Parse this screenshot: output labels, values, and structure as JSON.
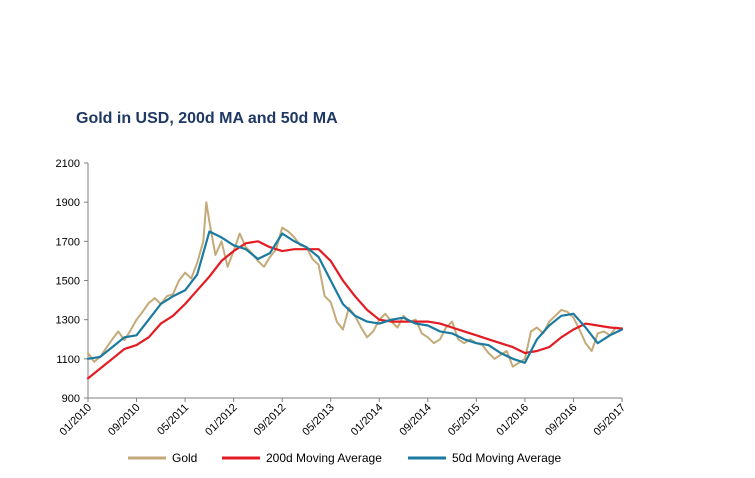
{
  "chart_data": {
    "type": "line",
    "title": "Gold in USD, 200d MA and 50d MA",
    "xlabel": "",
    "ylabel": "",
    "ylim": [
      900,
      2100
    ],
    "yticks": [
      900,
      1100,
      1300,
      1500,
      1700,
      1900,
      2100
    ],
    "x_range": [
      0,
      88
    ],
    "x_unit": "months since 01/2010",
    "xticks": [
      {
        "label": "01/2010",
        "x": 0
      },
      {
        "label": "09/2010",
        "x": 8
      },
      {
        "label": "05/2011",
        "x": 16
      },
      {
        "label": "01/2012",
        "x": 24
      },
      {
        "label": "09/2012",
        "x": 32
      },
      {
        "label": "05/2013",
        "x": 40
      },
      {
        "label": "01/2014",
        "x": 48
      },
      {
        "label": "09/2014",
        "x": 56
      },
      {
        "label": "05/2015",
        "x": 64
      },
      {
        "label": "01/2016",
        "x": 72
      },
      {
        "label": "09/2016",
        "x": 80
      },
      {
        "label": "05/2017",
        "x": 88
      }
    ],
    "legend_position": "bottom",
    "series": [
      {
        "name": "Gold",
        "color": "#c4aa78",
        "points": [
          [
            0,
            1130
          ],
          [
            1,
            1085
          ],
          [
            2,
            1110
          ],
          [
            3,
            1155
          ],
          [
            4,
            1200
          ],
          [
            5,
            1240
          ],
          [
            6,
            1195
          ],
          [
            7,
            1245
          ],
          [
            8,
            1300
          ],
          [
            9,
            1340
          ],
          [
            10,
            1385
          ],
          [
            11,
            1410
          ],
          [
            12,
            1380
          ],
          [
            13,
            1420
          ],
          [
            14,
            1430
          ],
          [
            15,
            1500
          ],
          [
            16,
            1540
          ],
          [
            17,
            1510
          ],
          [
            18,
            1590
          ],
          [
            19,
            1700
          ],
          [
            19.5,
            1900
          ],
          [
            20,
            1800
          ],
          [
            21,
            1630
          ],
          [
            22,
            1700
          ],
          [
            23,
            1570
          ],
          [
            24,
            1650
          ],
          [
            25,
            1740
          ],
          [
            26,
            1670
          ],
          [
            27,
            1640
          ],
          [
            28,
            1600
          ],
          [
            29,
            1570
          ],
          [
            30,
            1620
          ],
          [
            31,
            1660
          ],
          [
            32,
            1770
          ],
          [
            33,
            1750
          ],
          [
            34,
            1720
          ],
          [
            35,
            1680
          ],
          [
            36,
            1670
          ],
          [
            37,
            1610
          ],
          [
            38,
            1580
          ],
          [
            39,
            1420
          ],
          [
            40,
            1390
          ],
          [
            41,
            1290
          ],
          [
            42,
            1250
          ],
          [
            43,
            1360
          ],
          [
            44,
            1320
          ],
          [
            45,
            1260
          ],
          [
            46,
            1210
          ],
          [
            47,
            1240
          ],
          [
            48,
            1300
          ],
          [
            49,
            1330
          ],
          [
            50,
            1290
          ],
          [
            51,
            1260
          ],
          [
            52,
            1320
          ],
          [
            53,
            1290
          ],
          [
            54,
            1300
          ],
          [
            55,
            1230
          ],
          [
            56,
            1210
          ],
          [
            57,
            1180
          ],
          [
            58,
            1200
          ],
          [
            59,
            1260
          ],
          [
            60,
            1290
          ],
          [
            61,
            1200
          ],
          [
            62,
            1180
          ],
          [
            63,
            1200
          ],
          [
            64,
            1180
          ],
          [
            65,
            1170
          ],
          [
            66,
            1130
          ],
          [
            67,
            1100
          ],
          [
            68,
            1120
          ],
          [
            69,
            1140
          ],
          [
            70,
            1060
          ],
          [
            71,
            1080
          ],
          [
            72,
            1100
          ],
          [
            73,
            1240
          ],
          [
            74,
            1260
          ],
          [
            75,
            1230
          ],
          [
            76,
            1290
          ],
          [
            77,
            1320
          ],
          [
            78,
            1350
          ],
          [
            79,
            1340
          ],
          [
            80,
            1310
          ],
          [
            81,
            1250
          ],
          [
            82,
            1180
          ],
          [
            83,
            1140
          ],
          [
            84,
            1230
          ],
          [
            85,
            1240
          ],
          [
            86,
            1220
          ],
          [
            87,
            1260
          ],
          [
            88,
            1250
          ]
        ]
      },
      {
        "name": "200d Moving Average",
        "color": "#e31b23",
        "points": [
          [
            0,
            1000
          ],
          [
            2,
            1050
          ],
          [
            4,
            1100
          ],
          [
            6,
            1150
          ],
          [
            8,
            1170
          ],
          [
            10,
            1210
          ],
          [
            12,
            1280
          ],
          [
            14,
            1320
          ],
          [
            16,
            1380
          ],
          [
            18,
            1450
          ],
          [
            20,
            1520
          ],
          [
            22,
            1600
          ],
          [
            24,
            1650
          ],
          [
            26,
            1690
          ],
          [
            28,
            1700
          ],
          [
            30,
            1670
          ],
          [
            32,
            1650
          ],
          [
            34,
            1660
          ],
          [
            36,
            1660
          ],
          [
            38,
            1660
          ],
          [
            40,
            1600
          ],
          [
            42,
            1500
          ],
          [
            44,
            1420
          ],
          [
            46,
            1350
          ],
          [
            48,
            1300
          ],
          [
            50,
            1290
          ],
          [
            52,
            1290
          ],
          [
            54,
            1290
          ],
          [
            56,
            1290
          ],
          [
            58,
            1280
          ],
          [
            60,
            1260
          ],
          [
            62,
            1240
          ],
          [
            64,
            1220
          ],
          [
            66,
            1200
          ],
          [
            68,
            1180
          ],
          [
            70,
            1160
          ],
          [
            72,
            1130
          ],
          [
            74,
            1140
          ],
          [
            76,
            1160
          ],
          [
            78,
            1210
          ],
          [
            80,
            1250
          ],
          [
            82,
            1280
          ],
          [
            84,
            1270
          ],
          [
            86,
            1260
          ],
          [
            88,
            1255
          ]
        ]
      },
      {
        "name": "50d Moving Average",
        "color": "#1b7aa0",
        "points": [
          [
            0,
            1100
          ],
          [
            2,
            1110
          ],
          [
            4,
            1160
          ],
          [
            6,
            1210
          ],
          [
            8,
            1220
          ],
          [
            10,
            1300
          ],
          [
            12,
            1380
          ],
          [
            14,
            1420
          ],
          [
            16,
            1450
          ],
          [
            18,
            1530
          ],
          [
            20,
            1750
          ],
          [
            22,
            1720
          ],
          [
            24,
            1680
          ],
          [
            26,
            1660
          ],
          [
            28,
            1610
          ],
          [
            30,
            1640
          ],
          [
            32,
            1740
          ],
          [
            34,
            1700
          ],
          [
            36,
            1670
          ],
          [
            38,
            1620
          ],
          [
            40,
            1500
          ],
          [
            42,
            1380
          ],
          [
            44,
            1320
          ],
          [
            46,
            1290
          ],
          [
            48,
            1280
          ],
          [
            50,
            1300
          ],
          [
            52,
            1310
          ],
          [
            54,
            1280
          ],
          [
            56,
            1270
          ],
          [
            58,
            1240
          ],
          [
            60,
            1230
          ],
          [
            62,
            1200
          ],
          [
            64,
            1180
          ],
          [
            66,
            1170
          ],
          [
            68,
            1130
          ],
          [
            70,
            1100
          ],
          [
            72,
            1080
          ],
          [
            74,
            1200
          ],
          [
            76,
            1270
          ],
          [
            78,
            1320
          ],
          [
            80,
            1330
          ],
          [
            82,
            1260
          ],
          [
            84,
            1180
          ],
          [
            86,
            1220
          ],
          [
            88,
            1250
          ]
        ]
      }
    ]
  }
}
